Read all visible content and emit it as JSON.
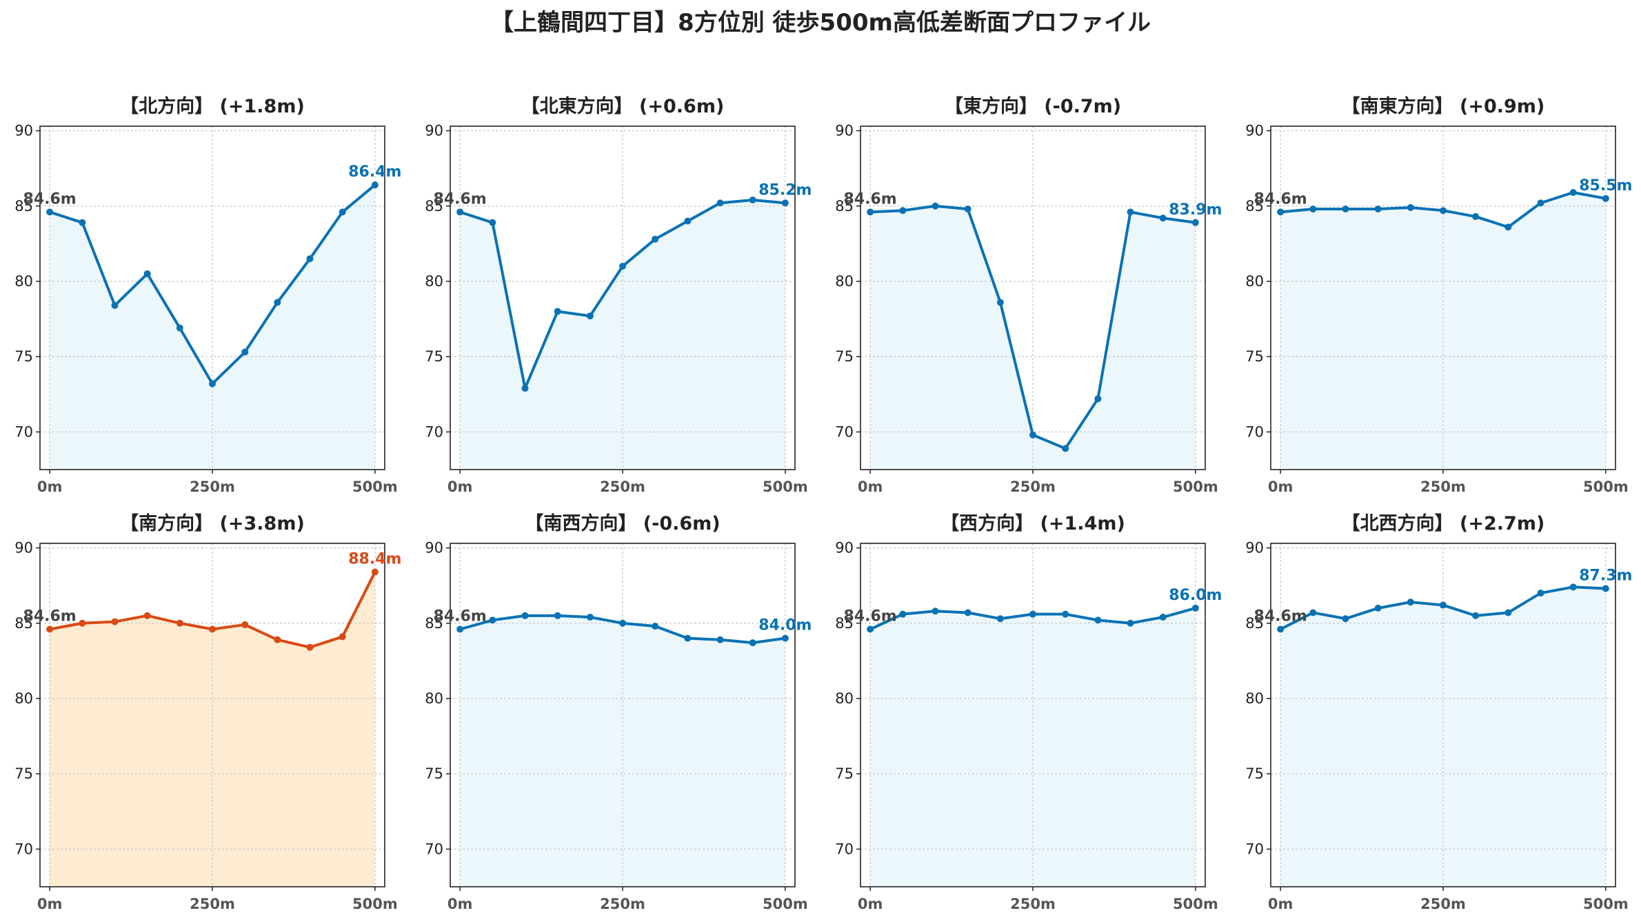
{
  "chart_data": {
    "title": "【上鶴間四丁目】8方位別 徒歩500m高低差断面プロファイル",
    "layout": "2x4 grid",
    "type": "area",
    "shared_x": [
      0,
      50,
      100,
      150,
      200,
      250,
      300,
      350,
      400,
      450,
      500
    ],
    "xticks": [
      0,
      250,
      500
    ],
    "xtick_labels": [
      "0m",
      "250m",
      "500m"
    ],
    "ylim": [
      67.5,
      90.3
    ],
    "yticks": [
      70,
      75,
      80,
      85,
      90
    ],
    "grid": true,
    "colors": {
      "line_default": "#0a72b4",
      "fill_default": "#ecf7fc",
      "line_highlight": "#d84a14",
      "fill_highlight": "#fdebd2",
      "start_label": "#444444"
    },
    "panels": [
      {
        "title": "【北方向】 (+1.8m)",
        "highlight": false,
        "start_label": "84.6m",
        "end_label": "86.4m",
        "values": [
          84.6,
          83.9,
          78.4,
          80.5,
          76.9,
          73.2,
          75.3,
          78.6,
          81.5,
          84.6,
          86.4
        ]
      },
      {
        "title": "【北東方向】 (+0.6m)",
        "highlight": false,
        "start_label": "84.6m",
        "end_label": "85.2m",
        "values": [
          84.6,
          83.9,
          72.9,
          78.0,
          77.7,
          81.0,
          82.8,
          84.0,
          85.2,
          85.4,
          85.2
        ]
      },
      {
        "title": "【東方向】 (-0.7m)",
        "highlight": false,
        "start_label": "84.6m",
        "end_label": "83.9m",
        "values": [
          84.6,
          84.7,
          85.0,
          84.8,
          78.6,
          69.8,
          68.9,
          72.2,
          84.6,
          84.2,
          83.9
        ]
      },
      {
        "title": "【南東方向】 (+0.9m)",
        "highlight": false,
        "start_label": "84.6m",
        "end_label": "85.5m",
        "values": [
          84.6,
          84.8,
          84.8,
          84.8,
          84.9,
          84.7,
          84.3,
          83.6,
          85.2,
          85.9,
          85.5
        ]
      },
      {
        "title": "【南方向】 (+3.8m)",
        "highlight": true,
        "start_label": "84.6m",
        "end_label": "88.4m",
        "values": [
          84.6,
          85.0,
          85.1,
          85.5,
          85.0,
          84.6,
          84.9,
          83.9,
          83.4,
          84.1,
          88.4
        ]
      },
      {
        "title": "【南西方向】 (-0.6m)",
        "highlight": false,
        "start_label": "84.6m",
        "end_label": "84.0m",
        "values": [
          84.6,
          85.2,
          85.5,
          85.5,
          85.4,
          85.0,
          84.8,
          84.0,
          83.9,
          83.7,
          84.0
        ]
      },
      {
        "title": "【西方向】 (+1.4m)",
        "highlight": false,
        "start_label": "84.6m",
        "end_label": "86.0m",
        "values": [
          84.6,
          85.6,
          85.8,
          85.7,
          85.3,
          85.6,
          85.6,
          85.2,
          85.0,
          85.4,
          86.0
        ]
      },
      {
        "title": "【北西方向】 (+2.7m)",
        "highlight": false,
        "start_label": "84.6m",
        "end_label": "87.3m",
        "values": [
          84.6,
          85.7,
          85.3,
          86.0,
          86.4,
          86.2,
          85.5,
          85.7,
          87.0,
          87.4,
          87.3
        ]
      }
    ]
  }
}
